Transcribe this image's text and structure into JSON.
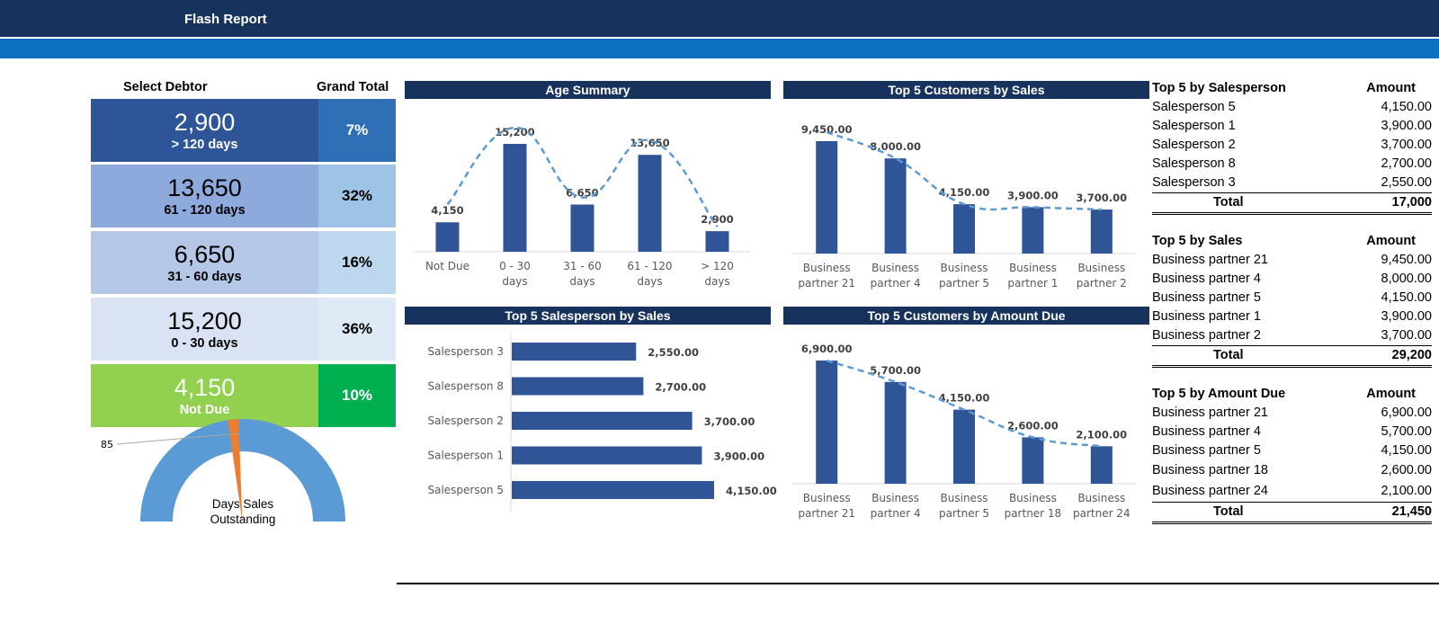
{
  "header": {
    "title": "Flash Report"
  },
  "left_panel": {
    "select_label": "Select Debtor",
    "grand_total_label": "Grand Total",
    "tiles": [
      {
        "value": "2,900",
        "label": "> 120 days",
        "pct": "7%",
        "bg": "#2e5597",
        "pct_bg": "#2f6fb6",
        "fg": "#ffffff",
        "pct_fg": "#ffffff"
      },
      {
        "value": "13,650",
        "label": "61 - 120 days",
        "pct": "32%",
        "bg": "#8eaadc",
        "pct_bg": "#9dc3e6",
        "fg": "#000000",
        "pct_fg": "#000000"
      },
      {
        "value": "6,650",
        "label": "31 - 60 days",
        "pct": "16%",
        "bg": "#b4c7e7",
        "pct_bg": "#bdd7ee",
        "fg": "#000000",
        "pct_fg": "#000000"
      },
      {
        "value": "15,200",
        "label": "0 - 30 days",
        "pct": "36%",
        "bg": "#dae3f3",
        "pct_bg": "#deebf7",
        "fg": "#000000",
        "pct_fg": "#000000"
      },
      {
        "value": "4,150",
        "label": "Not Due",
        "pct": "10%",
        "bg": "#92d050",
        "pct_bg": "#00b050",
        "fg": "#ffffff",
        "pct_fg": "#ffffff"
      }
    ],
    "gauge": {
      "value_label": "85",
      "label_line1": "Days Sales",
      "label_line2": "Outstanding",
      "needle_fraction": 0.47,
      "arc_color": "#5b9bd5",
      "needle_color": "#ed7d31"
    }
  },
  "chart_data": [
    {
      "type": "bar",
      "title": "Age Summary",
      "categories": [
        "Not Due",
        "0 - 30 days",
        "31 - 60 days",
        "61 - 120 days",
        "> 120 days"
      ],
      "values": [
        4150,
        15200,
        6650,
        13650,
        2900
      ],
      "value_labels": [
        "4,150",
        "15,200",
        "6,650",
        "13,650",
        "2,900"
      ],
      "trendline": "smoothed dashed",
      "bar_color": "#2f5597",
      "trend_color": "#5b9bd5"
    },
    {
      "type": "bar",
      "title": "Top 5 Customers  by Sales",
      "categories": [
        "Business partner 21",
        "Business partner 4",
        "Business partner 5",
        "Business partner 1",
        "Business partner 2"
      ],
      "values": [
        9450,
        8000,
        4150,
        3900,
        3700
      ],
      "value_labels": [
        "9,450.00",
        "8,000.00",
        "4,150.00",
        "3,900.00",
        "3,700.00"
      ],
      "trendline": "smoothed dashed"
    },
    {
      "type": "bar",
      "orientation": "horizontal",
      "title": "Top 5 Salesperson  by Sales",
      "categories": [
        "Salesperson 3",
        "Salesperson 8",
        "Salesperson 2",
        "Salesperson 1",
        "Salesperson 5"
      ],
      "values": [
        2550,
        2700,
        3700,
        3900,
        4150
      ],
      "value_labels": [
        "2,550.00",
        "2,700.00",
        "3,700.00",
        "3,900.00",
        "4,150.00"
      ]
    },
    {
      "type": "bar",
      "title": "Top 5 Customers  by Amount Due",
      "categories": [
        "Business partner 21",
        "Business partner 4",
        "Business partner 5",
        "Business partner 18",
        "Business partner 24"
      ],
      "values": [
        6900,
        5700,
        4150,
        2600,
        2100
      ],
      "value_labels": [
        "6,900.00",
        "5,700.00",
        "4,150.00",
        "2,600.00",
        "2,100.00"
      ],
      "trendline": "smoothed dashed"
    }
  ],
  "tables": [
    {
      "title": "Top 5 by Salesperson",
      "amount_label": "Amount",
      "rows": [
        {
          "name": "Salesperson 5",
          "amount": "4,150.00"
        },
        {
          "name": "Salesperson 1",
          "amount": "3,900.00"
        },
        {
          "name": "Salesperson 2",
          "amount": "3,700.00"
        },
        {
          "name": "Salesperson 8",
          "amount": "2,700.00"
        },
        {
          "name": "Salesperson 3",
          "amount": "2,550.00"
        }
      ],
      "total_label": "Total",
      "total": "17,000"
    },
    {
      "title": "Top 5 by Sales",
      "amount_label": "Amount",
      "rows": [
        {
          "name": "Business partner 21",
          "amount": "9,450.00"
        },
        {
          "name": "Business partner 4",
          "amount": "8,000.00"
        },
        {
          "name": "Business partner 5",
          "amount": "4,150.00"
        },
        {
          "name": "Business partner 1",
          "amount": "3,900.00"
        },
        {
          "name": "Business partner 2",
          "amount": "3,700.00"
        }
      ],
      "total_label": "Total",
      "total": "29,200"
    },
    {
      "title": "Top 5 by Amount Due",
      "amount_label": "Amount",
      "rows": [
        {
          "name": "Business partner 21",
          "amount": "6,900.00"
        },
        {
          "name": "Business partner 4",
          "amount": "5,700.00"
        },
        {
          "name": "Business partner 5",
          "amount": "4,150.00"
        },
        {
          "name": "Business partner 18",
          "amount": "2,600.00"
        },
        {
          "name": "Business partner 24",
          "amount": "2,100.00"
        }
      ],
      "total_label": "Total",
      "total": "21,450"
    }
  ]
}
